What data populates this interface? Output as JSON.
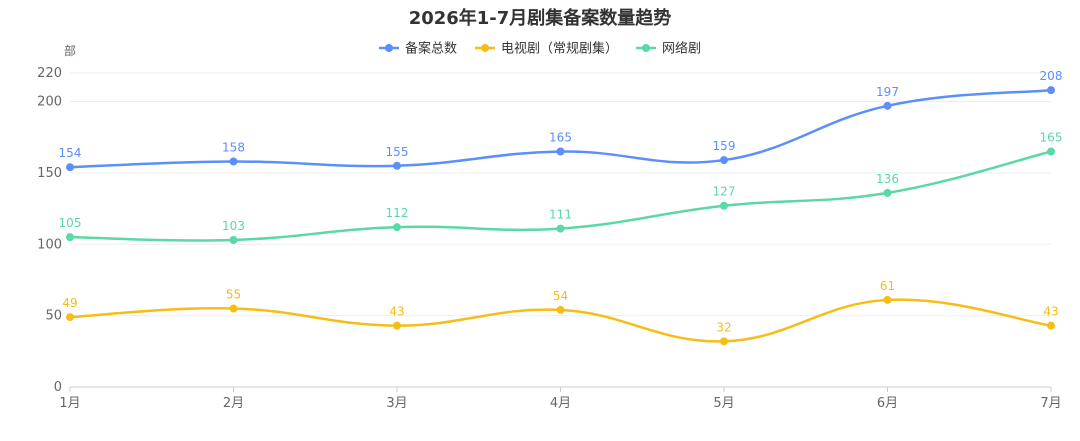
{
  "chart_data": {
    "type": "line",
    "title": "2026年1-7月剧集备案数量趋势",
    "y_unit_label": "部",
    "categories": [
      "1月",
      "2月",
      "3月",
      "4月",
      "5月",
      "6月",
      "7月"
    ],
    "y_ticks": [
      "0",
      "50",
      "100",
      "150",
      "200",
      "220"
    ],
    "ylim": [
      0,
      220
    ],
    "grid": true,
    "legend_position": "top-center",
    "smooth": true,
    "series": [
      {
        "name": "备案总数",
        "color": "#5B8FF9",
        "values": [
          154,
          158,
          155,
          165,
          159,
          197,
          208
        ]
      },
      {
        "name": "电视剧（常规剧集）",
        "color": "#F6BD16",
        "values": [
          49,
          55,
          43,
          54,
          32,
          61,
          43
        ]
      },
      {
        "name": "网络剧",
        "color": "#5AD8A6",
        "values": [
          105,
          103,
          112,
          111,
          127,
          136,
          165
        ]
      }
    ]
  }
}
